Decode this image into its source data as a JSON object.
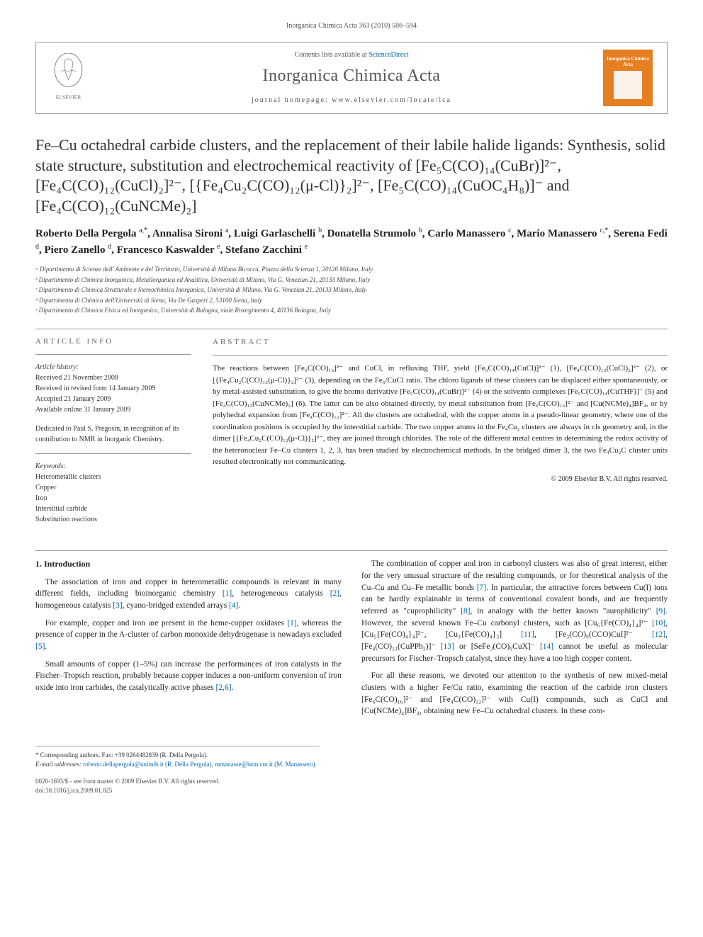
{
  "running_header": "Inorganica Chimica Acta 363 (2010) 586–594",
  "masthead": {
    "contents_prefix": "Contents lists available at ",
    "contents_link": "ScienceDirect",
    "journal": "Inorganica Chimica Acta",
    "homepage_prefix": "journal homepage: ",
    "homepage_url": "www.elsevier.com/locate/ica",
    "publisher": "ELSEVIER",
    "cover_text": "Inorganica Chimica Acta"
  },
  "title": "Fe–Cu octahedral carbide clusters, and the replacement of their labile halide ligands: Synthesis, solid state structure, substitution and electrochemical reactivity of [Fe₅C(CO)₁₄(CuBr)]²⁻, [Fe₄C(CO)₁₂(CuCl)₂]²⁻, [{Fe₄Cu₂C(CO)₁₂(μ-Cl)}₂]²⁻, [Fe₅C(CO)₁₄(CuOC₄H₈)]⁻ and [Fe₄C(CO)₁₂(CuNCMe)₂]",
  "authors_html": "Roberto Della Pergola <sup>a,*</sup>, Annalisa Sironi <sup>a</sup>, Luigi Garlaschelli <sup>b</sup>, Donatella Strumolo <sup>b</sup>, Carlo Manassero <sup>c</sup>, Mario Manassero <sup>c,*</sup>, Serena Fedi <sup>d</sup>, Piero Zanello <sup>d</sup>, Francesco Kaswalder <sup>e</sup>, Stefano Zacchini <sup>e</sup>",
  "affiliations": [
    "ᵃ Dipartimento di Scienze dell' Ambiente e del Territorio, Università di Milano Bicocca, Piazza della Scienza 1, 20126 Milano, Italy",
    "ᵇ Dipartimento di Chimica Inorganica, Metallorganica ed Analitica, Università di Milano, Via G. Venezian 21, 20133 Milano, Italy",
    "ᶜ Dipartimento di Chimica Strutturale e Stereochimica Inorganica, Università di Milano, Via G. Venezian 21, 20133 Milano, Italy",
    "ᵈ Dipartimento di Chimica dell'Università di Siena, Via De Gasperi 2, 53100 Siena, Italy",
    "ᵉ Dipartimento di Chimica Fisica ed Inorganica, Università di Bologna, viale Risorgimento 4, 40136 Bologna, Italy"
  ],
  "article_info": {
    "heading_info": "ARTICLE INFO",
    "heading_abstract": "ABSTRACT",
    "history_label": "Article history:",
    "history": [
      "Received 21 November 2008",
      "Received in revised form 14 January 2009",
      "Accepted 21 January 2009",
      "Available online 31 January 2009"
    ],
    "dedication": "Dedicated to Paul S. Pregosin, in recognition of its contribution to NMR in Inorganic Chemistry.",
    "keywords_label": "Keywords:",
    "keywords": [
      "Heterometallic clusters",
      "Copper",
      "Iron",
      "Interstitial carbide",
      "Substitution reactions"
    ]
  },
  "abstract": "The reactions between [Fe₆C(CO)₁₆]²⁻ and CuCl, in refluxing THF, yield [Fe₅C(CO)₁₄(CuCl)]²⁻ (1), [Fe₄C(CO)₁₂(CuCl)₂]²⁻ (2), or [{Fe₄Cu₂C(CO)₁₂(μ-Cl)}₂]²⁻ (3), depending on the Fe₆/CuCl ratio. The chloro ligands of these clusters can be displaced either spontaneously, or by metal-assisted substitution, to give the bromo derivative [Fe₅C(CO)₁₄(CuBr)]²⁻ (4) or the solvento complexes [Fe₅C(CO)₁₄(CuTHF)]⁻ (5) and [Fe₄C(CO)₁₂(CuNCMe)₂] (6). The latter can be also obtained directly, by metal substitution from [Fe₆C(CO)₁₆]²⁻ and [Cu(NCMe)₄]BF₄, or by polyhedral expansion from [Fe₄C(CO)₁₂]²⁻. All the clusters are octahedral, with the copper atoms in a pseudo-linear geometry, where one of the coordination positions is occupied by the interstitial carbide. The two copper atoms in the Fe₄Cu₂ clusters are always in cis geometry and, in the dimer [{Fe₄Cu₂C(CO)₁₂(μ-Cl)}₂]²⁻, they are joined through chlorides. The role of the different metal centres in determining the redox activity of the heteronuclear Fe–Cu clusters 1, 2, 3, has been studied by electrochemical methods. In the bridged dimer 3, the two Fe₄Cu₂C cluster units resulted electronically not communicating.",
  "copyright": "© 2009 Elsevier B.V. All rights reserved.",
  "section1_heading": "1. Introduction",
  "body_paragraphs_col1": [
    "The association of iron and copper in heterometallic compounds is relevant in many different fields, including bioinorganic chemistry [1], heterogeneous catalysis [2], homogeneous catalysis [3], cyano-bridged extended arrays [4].",
    "For example, copper and iron are present in the heme-copper oxidases [1], whereas the presence of copper in the A-cluster of carbon monoxide dehydrogenase is nowadays excluded [5].",
    "Small amounts of copper (1–5%) can increase the performances of iron catalysts in the Fischer–Tropsch reaction, probably because copper induces a non-uniform conversion of iron oxide into iron carbides, the catalytically active phases [2,6]."
  ],
  "body_paragraphs_col2": [
    "The combination of copper and iron in carbonyl clusters was also of great interest, either for the very unusual structure of the resulting compounds, or for theoretical analysis of the Cu–Cu and Cu–Fe metallic bonds [7]. In particular, the attractive forces between Cu(I) ions can be hardly explainable in terms of conventional covalent bonds, and are frequently referred as \"cuprophilicity\" [8], in analogy with the better known \"aurophilicity\" [9]. However, the several known Fe–Cu carbonyl clusters, such as [Cu₆{Fe(CO)₄}₄]²⁻ [10], [Cu₅{Fe(CO)₄}₄]²⁻, [Cu₃{Fe(CO)₄}₃] [11], [Fe₃(CO)₉(CCO)CuI]²⁻ [12], [Fe₄(CO)₁₃(CuPPh₃)]⁻ [13] or [SeFe₃(CO)₉CuX]⁻ [14] cannot be useful as molecular precursors for Fischer–Tropsch catalyst, since they have a too high copper content.",
    "For all these reasons, we devoted our attention to the synthesis of new mixed-metal clusters with a higher Fe/Cu ratio, examining the reaction of the carbide iron clusters [Fe₆C(CO)₁₆]²⁻ and [Fe₄C(CO)₁₂]²⁻ with Cu(I) compounds, such as CuCl and [Cu(NCMe)₄]BF₄, obtaining new Fe–Cu octahedral clusters. In these com-"
  ],
  "footer": {
    "corresponding": "* Corresponding authors. Fax: +39 0264482839 (R. Della Pergola).",
    "email_label": "E-mail addresses:",
    "emails": "roberto.dellapergola@unimib.it (R. Della Pergola), mmanasse@istm.cnr.it (M. Manassero).",
    "issn_line": "0020-1693/$ - see front matter © 2009 Elsevier B.V. All rights reserved.",
    "doi": "doi:10.1016/j.ica.2009.01.025"
  },
  "colors": {
    "link": "#0066aa",
    "rule": "#999999",
    "cover_bg": "#e67e22",
    "text": "#222222",
    "muted": "#555555"
  },
  "typography": {
    "body_pt": 11.5,
    "title_pt": 22,
    "authors_pt": 15,
    "affil_pt": 9,
    "abstract_pt": 11,
    "info_pt": 10,
    "footer_pt": 9
  }
}
